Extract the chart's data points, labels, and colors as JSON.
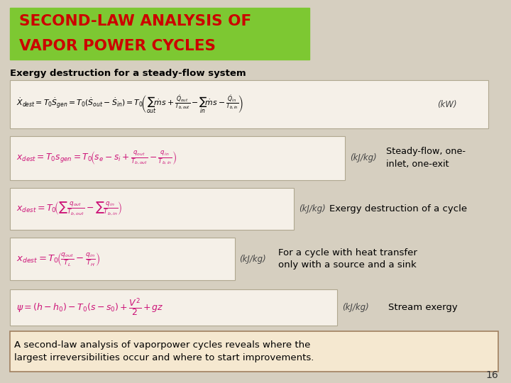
{
  "bg_color": "#d6cfc0",
  "title_bg_color": "#7dc832",
  "title_text_color": "#cc0000",
  "title_line1": "SECOND-LAW ANALYSIS OF",
  "title_line2": "VAPOR POWER CYCLES",
  "subtitle": "Exergy destruction for a steady-flow system",
  "subtitle_color": "#000000",
  "eq_box_color": "#f5f0e8",
  "eq_border_color": "#b0a890",
  "eq1_unit": "(kW)",
  "eq2_unit": "(kJ/kg)",
  "eq2_label": "Steady-flow, one-\ninlet, one-exit",
  "eq3_unit": "(kJ/kg)",
  "eq3_label": "Exergy destruction of a cycle",
  "eq4_unit": "(kJ/kg)",
  "eq4_label": "For a cycle with heat transfer\nonly with a source and a sink",
  "eq5_unit": "(kJ/kg)",
  "eq5_label": "Stream exergy",
  "footer_text": "A second-law analysis of vaporpower cycles reveals where the\nlargest irreversibilities occur and where to start improvements.",
  "footer_bg_color": "#f5e8d0",
  "footer_border_color": "#a08060",
  "page_number": "16",
  "eq_pink": "#cc1177",
  "eq_dark": "#000000",
  "label_color": "#000000",
  "unit_color": "#444444"
}
